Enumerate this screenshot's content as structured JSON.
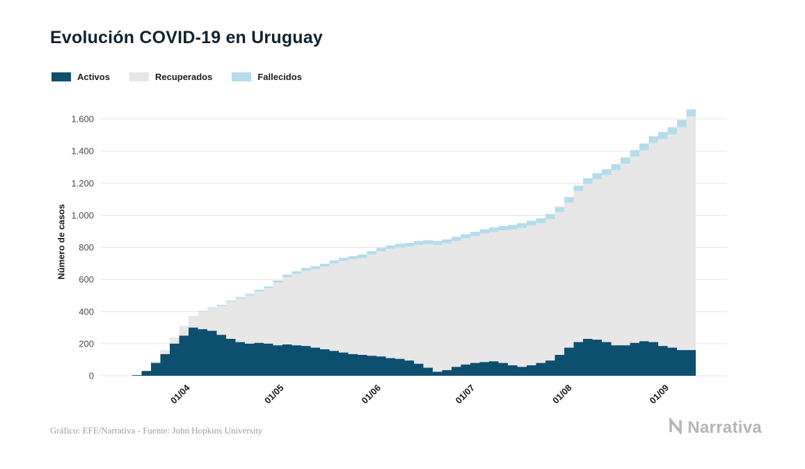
{
  "page": {
    "title": "Evolución COVID-19 en Uruguay",
    "footer_credit": "Gráfico: EFE/Narrativa - Fuente: John Hopkins University",
    "brand": "Narrativa"
  },
  "chart_data": {
    "type": "area",
    "stacked": true,
    "title": "Evolución COVID-19 en Uruguay",
    "xlabel": "",
    "ylabel": "Número de casos",
    "ylim": [
      0,
      1700
    ],
    "x_domain_days": [
      0,
      200
    ],
    "grid": "horizontal",
    "legend_position": "top-left",
    "y_ticks": [
      {
        "label": "0",
        "value": 0
      },
      {
        "label": "200",
        "value": 200
      },
      {
        "label": "400",
        "value": 400
      },
      {
        "label": "600",
        "value": 600
      },
      {
        "label": "800",
        "value": 800
      },
      {
        "label": "1.000",
        "value": 1000
      },
      {
        "label": "1.200",
        "value": 1200
      },
      {
        "label": "1.400",
        "value": 1400
      },
      {
        "label": "1.600",
        "value": 1600
      }
    ],
    "x_ticks": [
      {
        "label": "01/04",
        "d": 29
      },
      {
        "label": "01/05",
        "d": 59
      },
      {
        "label": "01/06",
        "d": 90
      },
      {
        "label": "01/07",
        "d": 120
      },
      {
        "label": "01/08",
        "d": 151
      },
      {
        "label": "01/09",
        "d": 182
      }
    ],
    "days": [
      10,
      13,
      16,
      19,
      22,
      25,
      28,
      31,
      34,
      37,
      40,
      43,
      46,
      49,
      52,
      55,
      58,
      61,
      64,
      67,
      70,
      73,
      76,
      79,
      82,
      85,
      88,
      91,
      94,
      97,
      100,
      103,
      106,
      109,
      112,
      115,
      118,
      121,
      124,
      127,
      130,
      133,
      136,
      139,
      142,
      145,
      148,
      151,
      154,
      157,
      160,
      163,
      166,
      169,
      172,
      175,
      178,
      181,
      184,
      187
    ],
    "series": [
      {
        "name": "Activos",
        "color": "#0d4f6e",
        "values": [
          4,
          30,
          80,
          135,
          200,
          250,
          300,
          290,
          280,
          255,
          230,
          210,
          200,
          205,
          200,
          190,
          195,
          190,
          185,
          175,
          165,
          155,
          145,
          135,
          130,
          125,
          120,
          110,
          105,
          95,
          75,
          50,
          25,
          35,
          55,
          70,
          80,
          85,
          90,
          80,
          65,
          55,
          65,
          80,
          95,
          130,
          175,
          210,
          230,
          225,
          210,
          190,
          190,
          205,
          215,
          210,
          185,
          175,
          160,
          160
        ]
      },
      {
        "name": "Recuperados",
        "color": "#e7e7e7",
        "values": [
          0,
          0,
          10,
          25,
          40,
          60,
          70,
          110,
          140,
          180,
          230,
          270,
          300,
          320,
          345,
          390,
          420,
          445,
          470,
          490,
          515,
          545,
          570,
          590,
          605,
          630,
          655,
          680,
          695,
          710,
          740,
          770,
          790,
          790,
          785,
          785,
          790,
          800,
          805,
          825,
          845,
          865,
          870,
          870,
          880,
          890,
          905,
          940,
          965,
          1000,
          1040,
          1090,
          1130,
          1160,
          1190,
          1240,
          1290,
          1330,
          1390,
          1455
        ]
      },
      {
        "name": "Fallecidos",
        "color": "#b5dcea",
        "values": [
          0,
          0,
          0,
          0,
          0,
          1,
          2,
          4,
          5,
          7,
          8,
          9,
          10,
          11,
          12,
          14,
          15,
          16,
          17,
          18,
          18,
          19,
          20,
          20,
          21,
          21,
          22,
          22,
          23,
          23,
          24,
          24,
          25,
          25,
          26,
          27,
          27,
          28,
          29,
          29,
          30,
          31,
          31,
          32,
          33,
          33,
          34,
          35,
          36,
          37,
          38,
          39,
          40,
          41,
          42,
          43,
          44,
          44,
          45,
          45
        ]
      }
    ]
  }
}
